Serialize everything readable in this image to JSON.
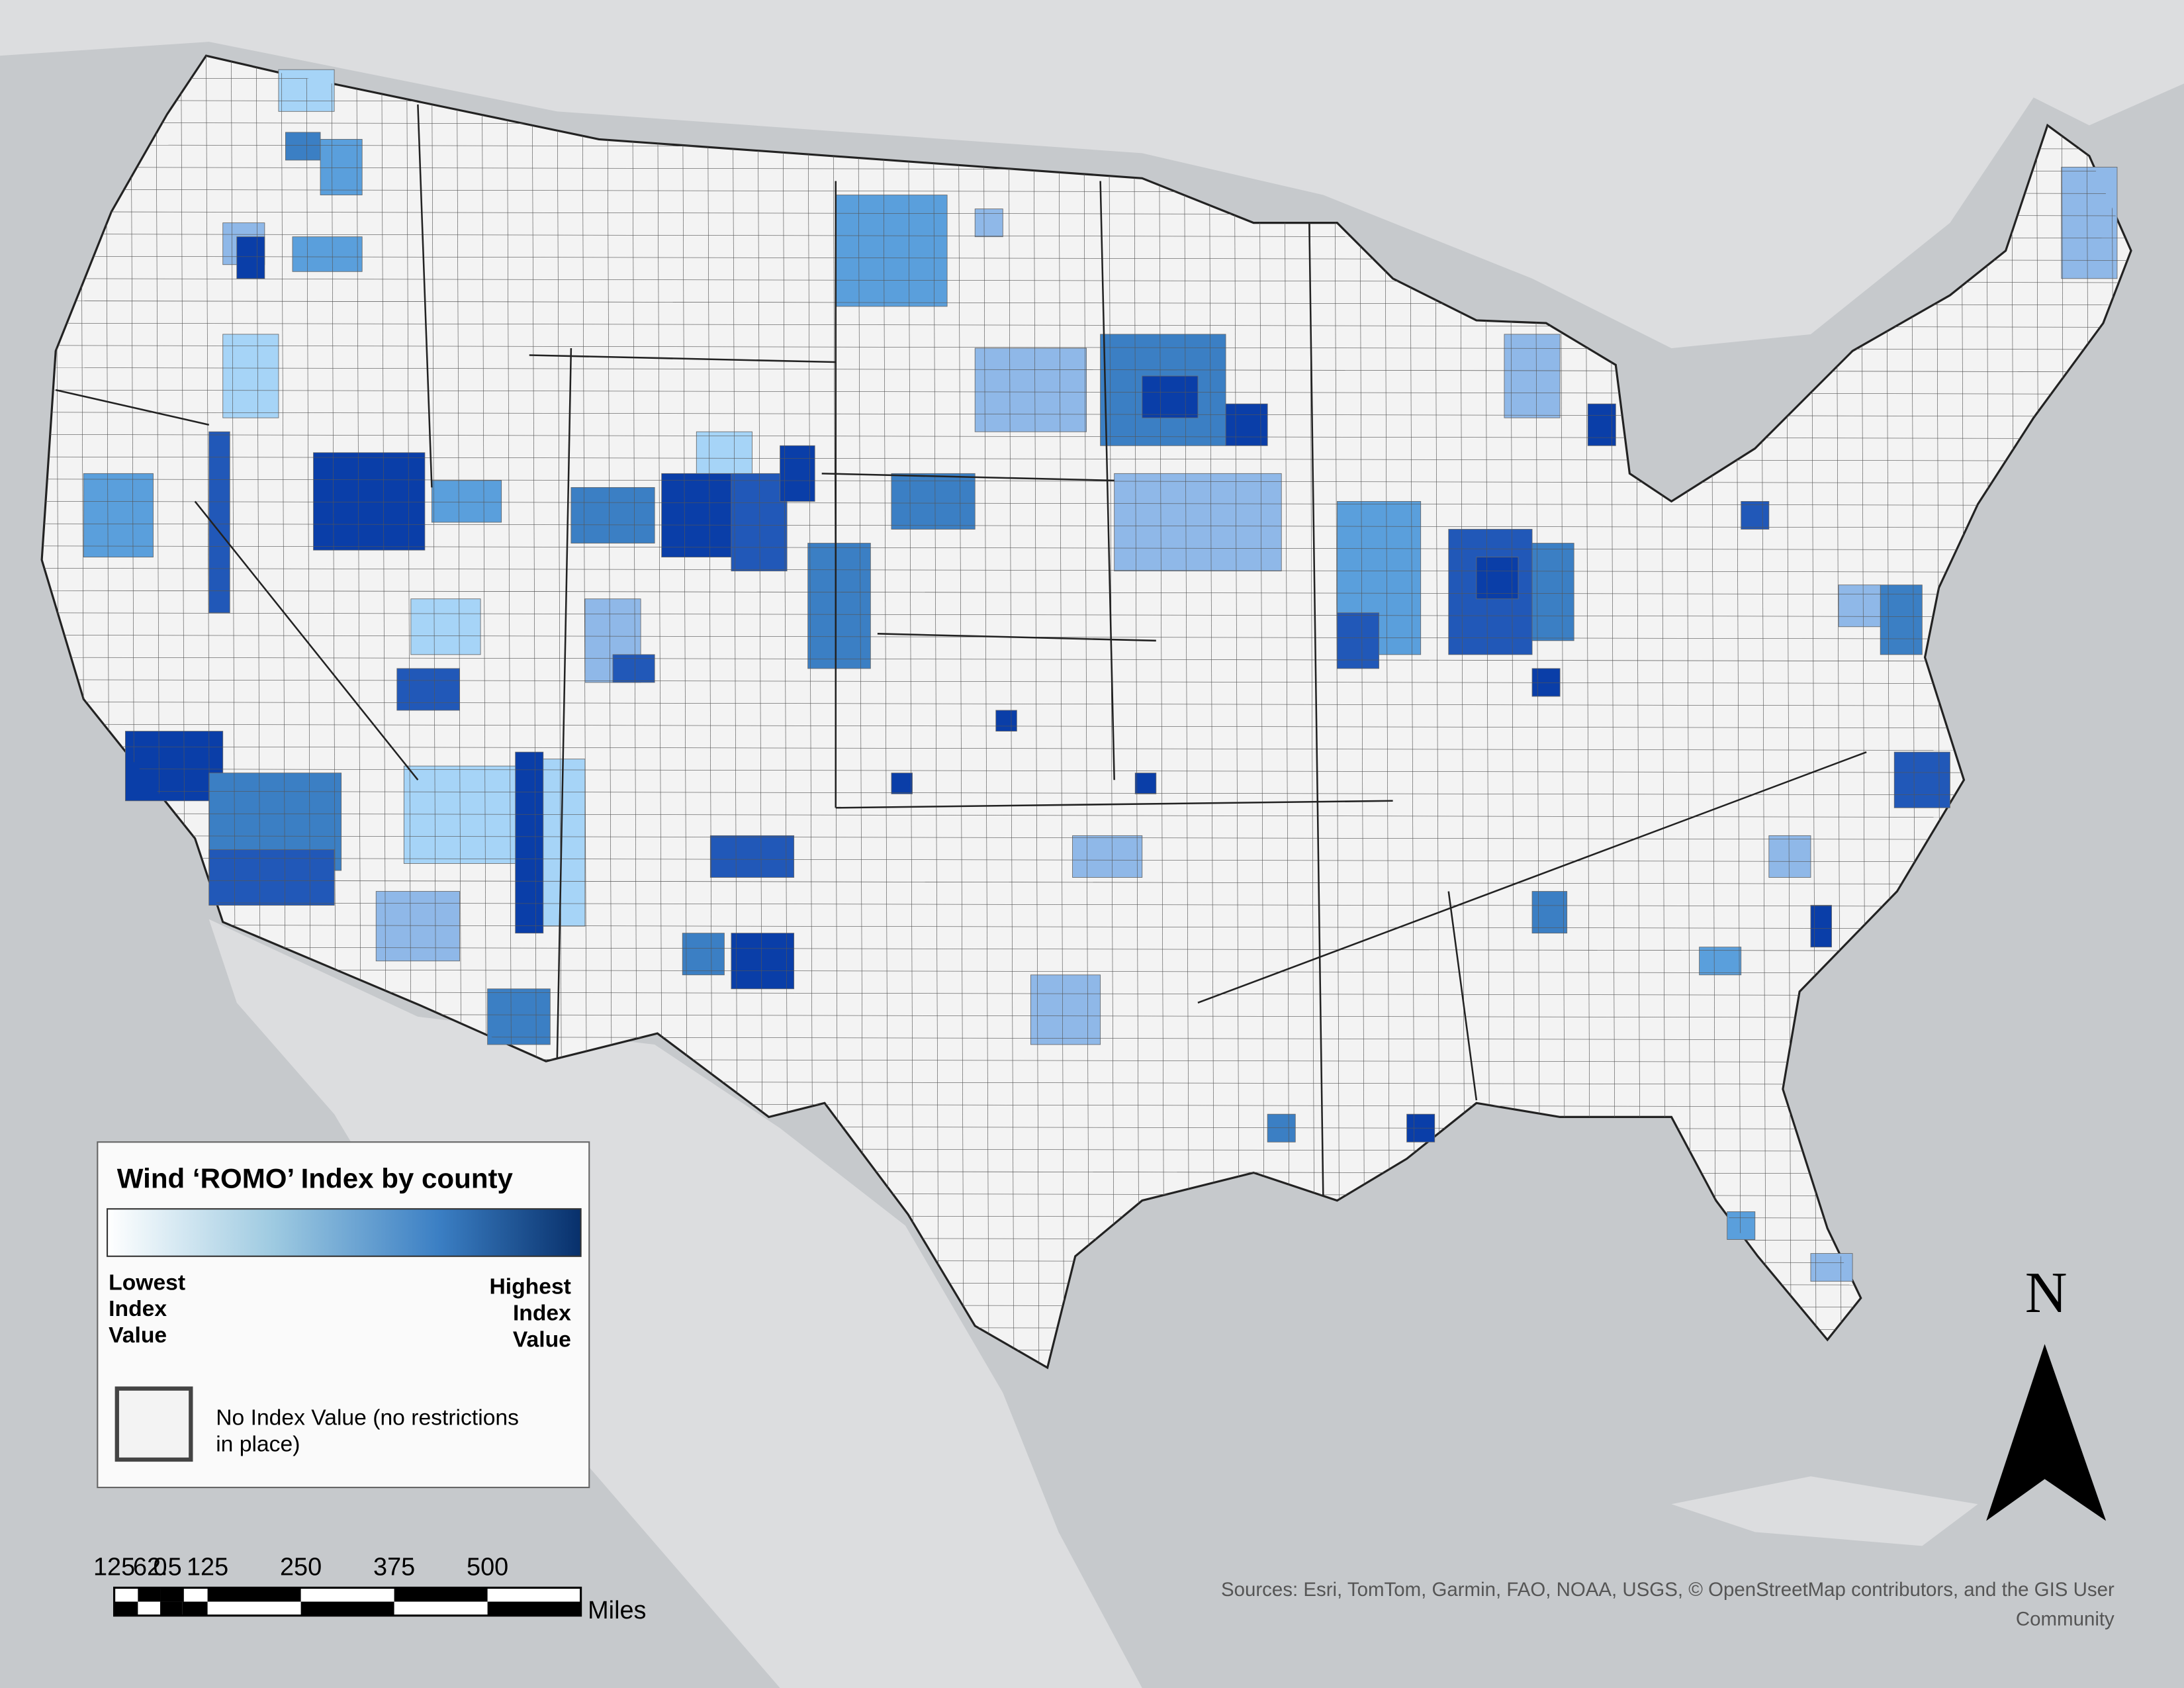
{
  "legend": {
    "title": "Wind ‘ROMO’ Index by county",
    "low_label": [
      "Lowest",
      "Index",
      "Value"
    ],
    "high_label": [
      "Highest",
      "Index",
      "Value"
    ],
    "no_value_label": [
      "No Index Value (no restrictions",
      "in place)"
    ]
  },
  "scale_bar": {
    "labels": [
      "125",
      "62.5",
      "0",
      "125",
      "250",
      "375",
      "500"
    ],
    "unit": "Miles"
  },
  "north_arrow": {
    "label": "N"
  },
  "sources": [
    "Sources: Esri, TomTom, Garmin, FAO, NOAA, USGS, © OpenStreetMap contributors, and the GIS User",
    "Community"
  ]
}
